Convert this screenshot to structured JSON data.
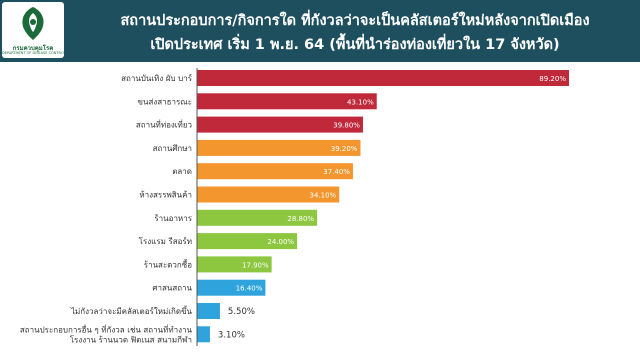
{
  "header": {
    "logo_text": "กรมควบคุมโรค",
    "logo_subtext": "DEPARTMENT OF DISEASE CONTROL",
    "title_line1": "สถานประกอบการ/กิจการใด ที่กังวลว่าจะเป็นคลัสเตอร์ใหม่หลังจากเปิดเมือง",
    "title_line2": "เปิดประเทศ เริ่ม 1 พ.ย. 64 (พื้นที่นำร่องท่องเที่ยวใน 17 จังหวัด)"
  },
  "colors": {
    "header_bg": "#1d4f5e",
    "red": "#c0293a",
    "orange": "#f2962d",
    "green": "#8dc63f",
    "blue": "#2ea3dc"
  },
  "chart_data": {
    "type": "bar",
    "orientation": "horizontal",
    "xlim": [
      0,
      100
    ],
    "categories": [
      {
        "label": "สถานบันเทิง ผับ บาร์",
        "value": 89.2,
        "value_label": "89.20%",
        "color": "red"
      },
      {
        "label": "ขนส่งสาธารณะ",
        "value": 43.1,
        "value_label": "43.10%",
        "color": "red"
      },
      {
        "label": "สถานที่ท่องเที่ยว",
        "value": 39.8,
        "value_label": "39.80%",
        "color": "red"
      },
      {
        "label": "สถานศึกษา",
        "value": 39.2,
        "value_label": "39.20%",
        "color": "orange"
      },
      {
        "label": "ตลาด",
        "value": 37.4,
        "value_label": "37.40%",
        "color": "orange"
      },
      {
        "label": "ห้างสรรพสินค้า",
        "value": 34.1,
        "value_label": "34.10%",
        "color": "orange"
      },
      {
        "label": "ร้านอาหาร",
        "value": 28.8,
        "value_label": "28.80%",
        "color": "green"
      },
      {
        "label": "โรงแรม รีสอร์ท",
        "value": 24.0,
        "value_label": "24.00%",
        "color": "green"
      },
      {
        "label": "ร้านสะดวกซื้อ",
        "value": 17.9,
        "value_label": "17.90%",
        "color": "green"
      },
      {
        "label": "ศาสนสถาน",
        "value": 16.4,
        "value_label": "16.40%",
        "color": "blue"
      },
      {
        "label": "ไม่กังวลว่าจะมีคลัสเตอร์ใหม่เกิดขึ้น",
        "value": 5.5,
        "value_label": "5.50%",
        "color": "blue"
      },
      {
        "label": [
          "สถานประกอบการอื่น ๆ ที่กังวล เช่น สถานที่ทำงาน",
          "โรงงาน ร้านนวด ฟิตเนส สนามกีฬา"
        ],
        "value": 3.1,
        "value_label": "3.10%",
        "color": "blue"
      }
    ]
  }
}
